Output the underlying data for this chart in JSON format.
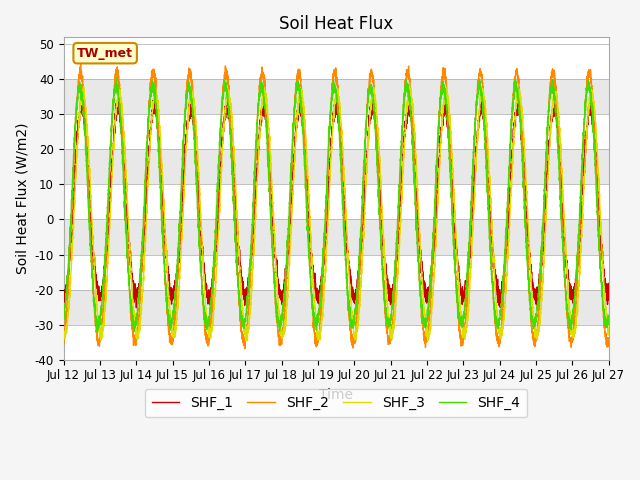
{
  "title": "Soil Heat Flux",
  "xlabel": "Time",
  "ylabel": "Soil Heat Flux (W/m2)",
  "ylim": [
    -40,
    52
  ],
  "xtick_labels": [
    "Jul 12",
    "Jul 13",
    "Jul 14",
    "Jul 15",
    "Jul 16",
    "Jul 17",
    "Jul 18",
    "Jul 19",
    "Jul 20",
    "Jul 21",
    "Jul 22",
    "Jul 23",
    "Jul 24",
    "Jul 25",
    "Jul 26",
    "Jul 27"
  ],
  "ytick_labels": [
    "-40",
    "-30",
    "-20",
    "-10",
    "0",
    "10",
    "20",
    "30",
    "40",
    "50"
  ],
  "ytick_values": [
    -40,
    -30,
    -20,
    -10,
    0,
    10,
    20,
    30,
    40,
    50
  ],
  "line_colors": [
    "#cc0000",
    "#ff8800",
    "#dddd00",
    "#44dd00"
  ],
  "line_labels": [
    "SHF_1",
    "SHF_2",
    "SHF_3",
    "SHF_4"
  ],
  "annotation_text": "TW_met",
  "annotation_bbox_facecolor": "#ffffcc",
  "annotation_bbox_edgecolor": "#cc8800",
  "background_color": "#f5f5f5",
  "plot_bg_color": "#ffffff",
  "stripe_colors": [
    "#ffffff",
    "#e8e8e8"
  ],
  "n_points": 5000,
  "days": 15,
  "legend_ncol": 4,
  "title_fontsize": 12,
  "axis_label_fontsize": 10,
  "tick_fontsize": 8.5,
  "legend_fontsize": 10
}
